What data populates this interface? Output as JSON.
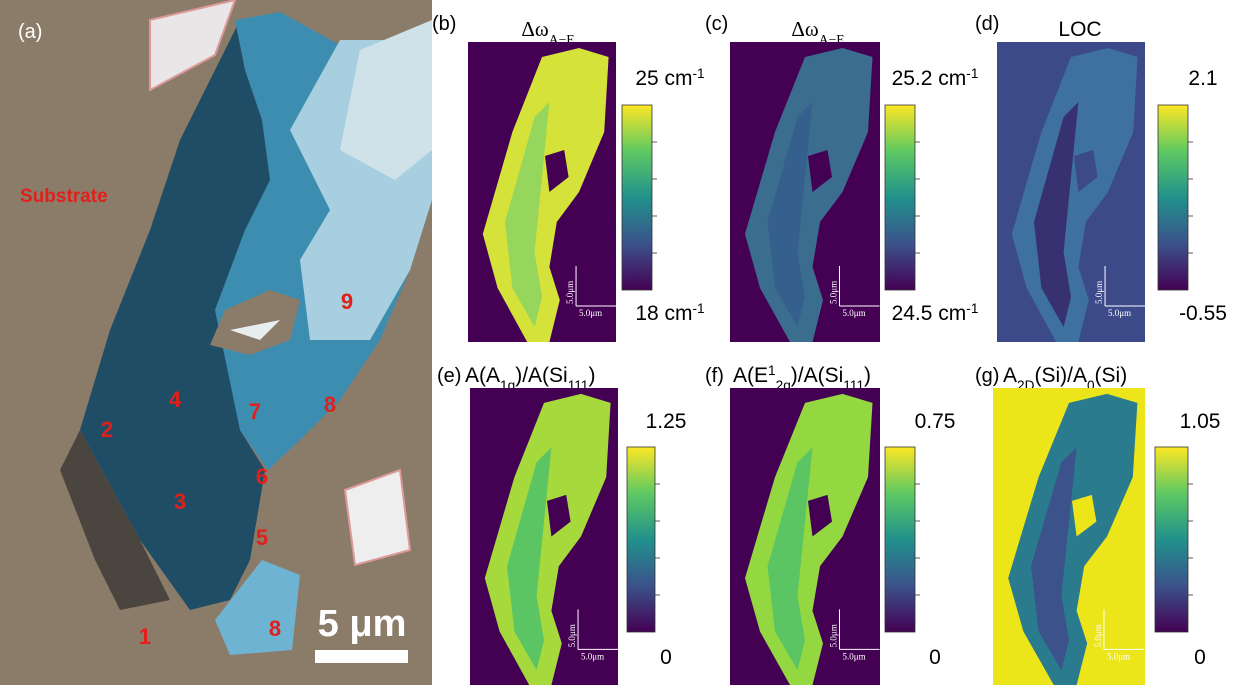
{
  "panel_a": {
    "label": "(a)",
    "substrate": "Substrate",
    "regions": [
      "2",
      "4",
      "7",
      "8",
      "9",
      "3",
      "6",
      "5",
      "8",
      "1"
    ],
    "scale_bar": "5 μm"
  },
  "panels": [
    {
      "label": "(b)",
      "title": [
        {
          "text": "Δω"
        },
        {
          "sub": "A−E"
        }
      ],
      "colorbar_max": [
        {
          "text": "25 cm"
        },
        {
          "sup": "-1"
        }
      ],
      "colorbar_min": [
        {
          "text": "18 cm"
        },
        {
          "sup": "-1"
        }
      ],
      "scale": "5.0μm"
    },
    {
      "label": "(c)",
      "title": [
        {
          "text": "Δω"
        },
        {
          "sub": "A−E"
        }
      ],
      "colorbar_max": [
        {
          "text": "25.2 cm"
        },
        {
          "sup": "-1"
        }
      ],
      "colorbar_min": [
        {
          "text": "24.5 cm"
        },
        {
          "sup": "-1"
        }
      ],
      "scale": "5.0μm"
    },
    {
      "label": "(d)",
      "title": [
        {
          "text": "LOC"
        }
      ],
      "colorbar_max": [
        {
          "text": "2.1"
        }
      ],
      "colorbar_min": [
        {
          "text": "-0.55"
        }
      ],
      "scale": "5.0μm"
    },
    {
      "label": "(e)",
      "title": [
        {
          "text": "A(A"
        },
        {
          "sub": "1g"
        },
        {
          "text": ")/A(Si"
        },
        {
          "sub": "111"
        },
        {
          "text": ")"
        }
      ],
      "colorbar_max": [
        {
          "text": "1.25"
        }
      ],
      "colorbar_min": [
        {
          "text": "0"
        }
      ],
      "scale": "5.0μm"
    },
    {
      "label": "(f)",
      "title": [
        {
          "text": "A(E"
        },
        {
          "sup": "1"
        },
        {
          "sub": "2g"
        },
        {
          "text": ")/A(Si"
        },
        {
          "sub": "111"
        },
        {
          "text": ")"
        }
      ],
      "colorbar_max": [
        {
          "text": "0.75"
        }
      ],
      "colorbar_min": [
        {
          "text": "0"
        }
      ],
      "scale": "5.0μm"
    },
    {
      "label": "(g)",
      "title": [
        {
          "text": "A"
        },
        {
          "sub": "2D"
        },
        {
          "text": "(Si)/A"
        },
        {
          "sub": "0"
        },
        {
          "text": "(Si)"
        }
      ],
      "colorbar_max": [
        {
          "text": "1.05"
        }
      ],
      "colorbar_min": [
        {
          "text": "0"
        }
      ],
      "scale": "5.0μm"
    }
  ]
}
